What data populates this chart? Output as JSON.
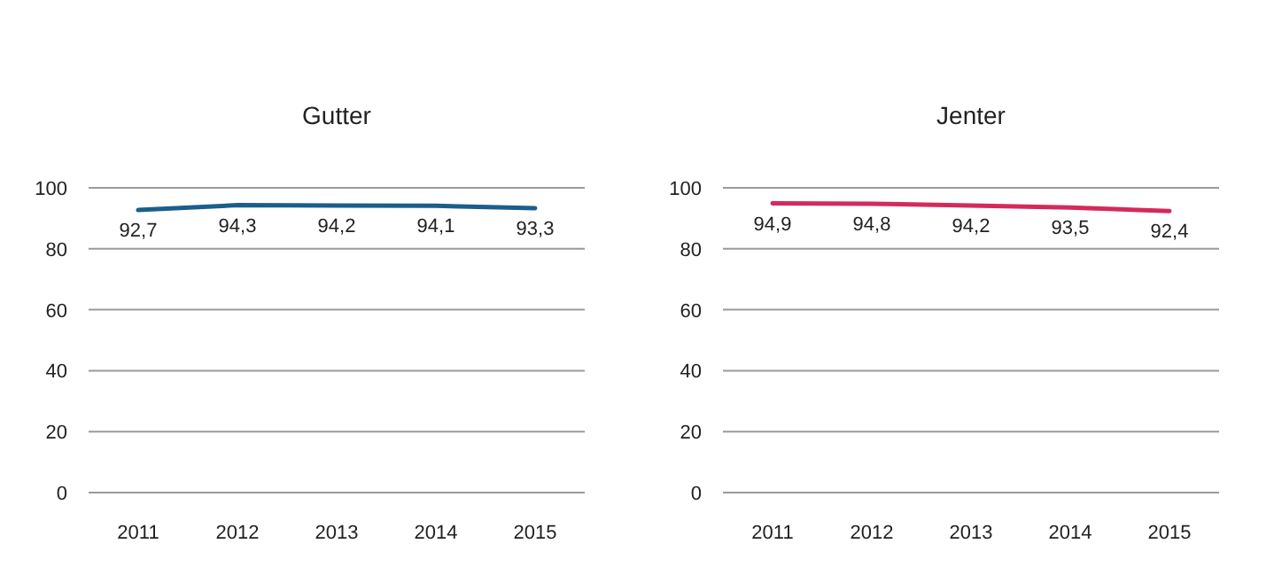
{
  "chart_data": [
    {
      "type": "line",
      "title": "Gutter",
      "categories": [
        "2011",
        "2012",
        "2013",
        "2014",
        "2015"
      ],
      "series": [
        {
          "color": "#1b5e8c",
          "values": [
            92.7,
            94.3,
            94.2,
            94.1,
            93.3
          ],
          "value_labels": [
            "92,7",
            "94,3",
            "94,2",
            "94,1",
            "93,3"
          ]
        }
      ],
      "ylim": [
        0,
        100
      ],
      "yticks": [
        0,
        20,
        40,
        60,
        80,
        100
      ],
      "grid": "y",
      "marker": "none"
    },
    {
      "type": "line",
      "title": "Jenter",
      "categories": [
        "2011",
        "2012",
        "2013",
        "2014",
        "2015"
      ],
      "series": [
        {
          "color": "#d42a5b",
          "values": [
            94.9,
            94.8,
            94.2,
            93.5,
            92.4
          ],
          "value_labels": [
            "94,9",
            "94,8",
            "94,2",
            "93,5",
            "92,4"
          ]
        }
      ],
      "ylim": [
        0,
        100
      ],
      "yticks": [
        0,
        20,
        40,
        60,
        80,
        100
      ],
      "grid": "y",
      "marker": "none"
    }
  ]
}
